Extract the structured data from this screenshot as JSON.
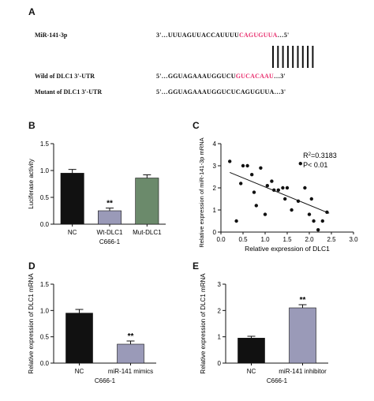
{
  "panel_a": {
    "letter": "A",
    "rows": [
      {
        "label": "MiR-141-3p",
        "prefix": "3'…UUUAGUUACCAUUUU",
        "highlight": "CAGUGUUA",
        "suffix": "…5'"
      },
      {
        "label": "Wild of DLC1 3'-UTR",
        "prefix": "5'…GGUAGAAAUGGUCU",
        "highlight": "GUCACAAU",
        "suffix": "…3'"
      },
      {
        "label": "Mutant of DLC1 3'-UTR",
        "prefix": "5'…GGUAGAAAUGGUCUCAGUGUUA…3'",
        "highlight": "",
        "suffix": ""
      }
    ]
  },
  "chart_data": [
    {
      "panel": "B",
      "type": "bar",
      "ylabel": "Luciferase activity",
      "xlabel": "C666-1",
      "ylim": [
        0,
        1.5
      ],
      "yticks": [
        "0.0",
        "0.5",
        "1.0",
        "1.5"
      ],
      "categories": [
        "NC",
        "Wt-DLC1",
        "Mut-DLC1"
      ],
      "values": [
        0.95,
        0.25,
        0.86
      ],
      "errors": [
        0.07,
        0.05,
        0.06
      ],
      "colors": [
        "#111111",
        "#9a9ab8",
        "#6b8a6b"
      ],
      "annotations": [
        "",
        "**",
        ""
      ]
    },
    {
      "panel": "C",
      "type": "scatter",
      "ylabel": "Relative expression of miR-141-3p mRNA",
      "xlabel": "Relative expression of DLC1",
      "xlim": [
        0,
        3
      ],
      "ylim": [
        0,
        4
      ],
      "xticks": [
        "0.0",
        "0.5",
        "1.0",
        "1.5",
        "2.0",
        "2.5",
        "3.0"
      ],
      "yticks": [
        "0",
        "1",
        "2",
        "3",
        "4"
      ],
      "r2_base": "R",
      "r2_sup": "2",
      "r2_value": "=0.3183",
      "p_text": "P< 0.01",
      "x": [
        0.2,
        0.35,
        0.45,
        0.5,
        0.6,
        0.7,
        0.75,
        0.8,
        0.9,
        1.0,
        1.05,
        1.15,
        1.2,
        1.3,
        1.4,
        1.45,
        1.5,
        1.6,
        1.75,
        1.8,
        1.9,
        2.0,
        2.05,
        2.1,
        2.2,
        2.3,
        2.4
      ],
      "y": [
        3.2,
        0.5,
        2.2,
        3.0,
        3.0,
        2.6,
        1.8,
        1.2,
        2.9,
        0.8,
        2.1,
        2.3,
        1.9,
        1.9,
        2.0,
        1.5,
        2.0,
        1.0,
        1.4,
        3.1,
        2.0,
        0.8,
        1.5,
        0.5,
        0.1,
        0.5,
        0.9
      ],
      "fit": [
        [
          0.2,
          2.7
        ],
        [
          2.45,
          0.85
        ]
      ]
    },
    {
      "panel": "D",
      "type": "bar",
      "ylabel": "Relative expression of DLC1 mRNA",
      "xlabel": "C666-1",
      "ylim": [
        0,
        1.5
      ],
      "yticks": [
        "0.0",
        "0.5",
        "1.0",
        "1.5"
      ],
      "categories": [
        "NC",
        "miR-141 mimics"
      ],
      "values": [
        0.95,
        0.36
      ],
      "errors": [
        0.07,
        0.06
      ],
      "colors": [
        "#111111",
        "#9a9ab8"
      ],
      "annotations": [
        "",
        "**"
      ]
    },
    {
      "panel": "E",
      "type": "bar",
      "ylabel": "Relative expression of DLC1 mRNA",
      "xlabel": "C666-1",
      "ylim": [
        0,
        3
      ],
      "yticks": [
        "0",
        "1",
        "2",
        "3"
      ],
      "categories": [
        "NC",
        "miR-141 inhibitor"
      ],
      "values": [
        0.95,
        2.1
      ],
      "errors": [
        0.07,
        0.12
      ],
      "colors": [
        "#111111",
        "#9a9ab8"
      ],
      "annotations": [
        "",
        "**"
      ]
    }
  ]
}
